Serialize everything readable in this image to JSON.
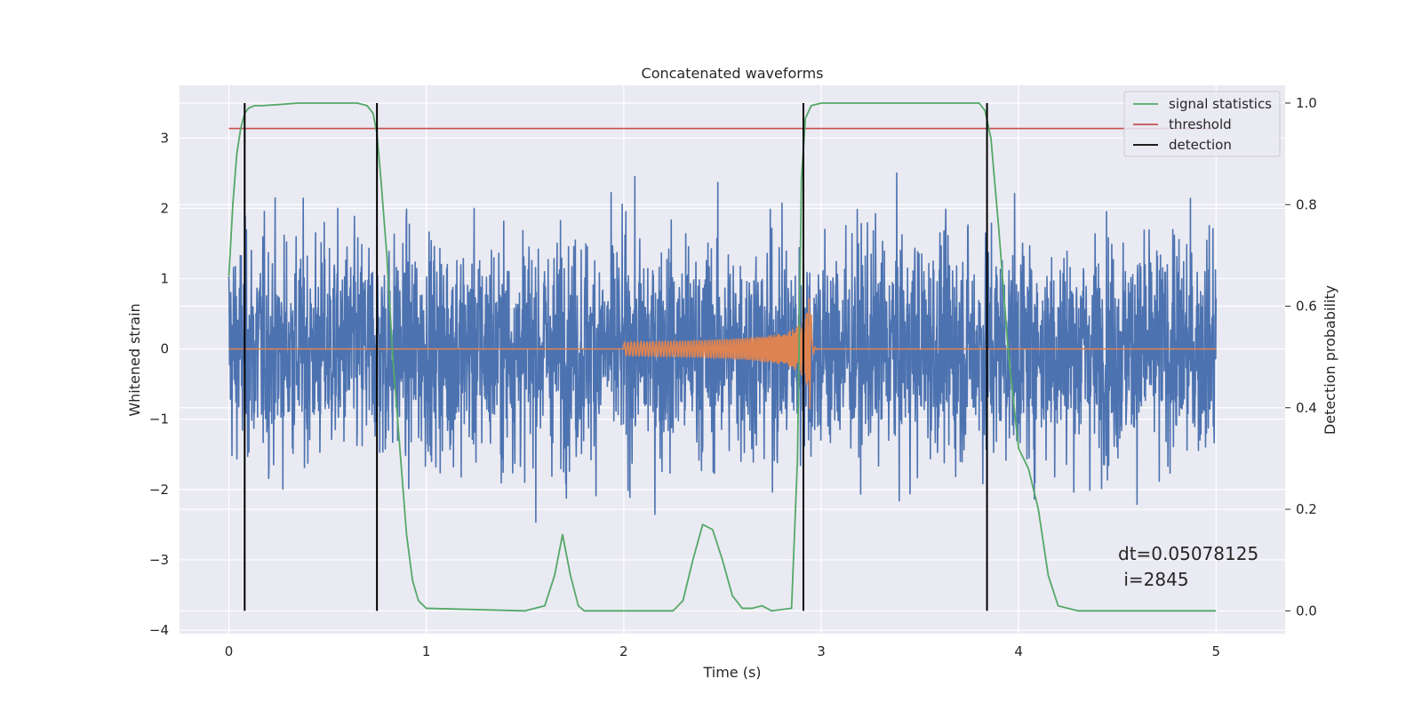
{
  "chart_data": {
    "type": "line",
    "title": "Concatenated waveforms",
    "xlabel": "Time (s)",
    "ylabel": "Whitened strain",
    "y2label": "Detection probability",
    "xlim": [
      -0.25,
      5.35
    ],
    "ylim": [
      -4.05,
      3.75
    ],
    "y2lim": [
      -0.045,
      1.035
    ],
    "x_ticks": [
      0,
      1,
      2,
      3,
      4,
      5
    ],
    "y_ticks": [
      -4,
      -3,
      -2,
      -1,
      0,
      1,
      2,
      3
    ],
    "y2_ticks": [
      0.0,
      0.2,
      0.4,
      0.6,
      0.8,
      1.0
    ],
    "grid": true,
    "legend_position": "upper right",
    "colors": {
      "strain": "#4c72b0",
      "injection": "#dd8452",
      "statistics": "#55a868",
      "threshold": "#c44e52",
      "detection": "#000000",
      "background": "#eaeaf2",
      "grid": "#ffffff"
    },
    "legend": [
      {
        "label": "signal statistics",
        "color": "#55a868"
      },
      {
        "label": "threshold",
        "color": "#c44e52"
      },
      {
        "label": "detection",
        "color": "#000000"
      }
    ],
    "threshold": {
      "value": 0.95,
      "x_range": [
        0,
        5
      ]
    },
    "detections": [
      0.08,
      0.75,
      2.91,
      3.84
    ],
    "detection_y2_range": [
      0.0,
      1.0
    ],
    "signal_statistics": {
      "x": [
        0.0,
        0.02,
        0.04,
        0.06,
        0.08,
        0.1,
        0.13,
        0.17,
        0.25,
        0.35,
        0.5,
        0.65,
        0.7,
        0.73,
        0.75,
        0.77,
        0.8,
        0.83,
        0.87,
        0.9,
        0.93,
        0.96,
        1.0,
        1.5,
        1.6,
        1.65,
        1.69,
        1.73,
        1.77,
        1.8,
        2.0,
        2.25,
        2.3,
        2.35,
        2.4,
        2.45,
        2.5,
        2.55,
        2.6,
        2.65,
        2.7,
        2.75,
        2.85,
        2.88,
        2.9,
        2.92,
        2.95,
        3.0,
        3.5,
        3.8,
        3.83,
        3.86,
        3.9,
        3.95,
        4.0,
        4.05,
        4.1,
        4.15,
        4.2,
        4.3,
        5.0
      ],
      "y": [
        0.66,
        0.8,
        0.9,
        0.95,
        0.98,
        0.99,
        0.995,
        0.995,
        0.997,
        1.0,
        1.0,
        1.0,
        0.995,
        0.98,
        0.94,
        0.85,
        0.7,
        0.5,
        0.3,
        0.15,
        0.06,
        0.02,
        0.005,
        0.0,
        0.01,
        0.07,
        0.15,
        0.07,
        0.01,
        0.0,
        0.0,
        0.0,
        0.02,
        0.1,
        0.17,
        0.16,
        0.1,
        0.03,
        0.005,
        0.005,
        0.01,
        0.0,
        0.005,
        0.3,
        0.85,
        0.97,
        0.995,
        1.0,
        1.0,
        1.0,
        0.985,
        0.93,
        0.75,
        0.5,
        0.32,
        0.28,
        0.2,
        0.07,
        0.01,
        0.0,
        0.0
      ]
    },
    "annotations": [
      "dt=0.05078125",
      " i=2845"
    ]
  }
}
